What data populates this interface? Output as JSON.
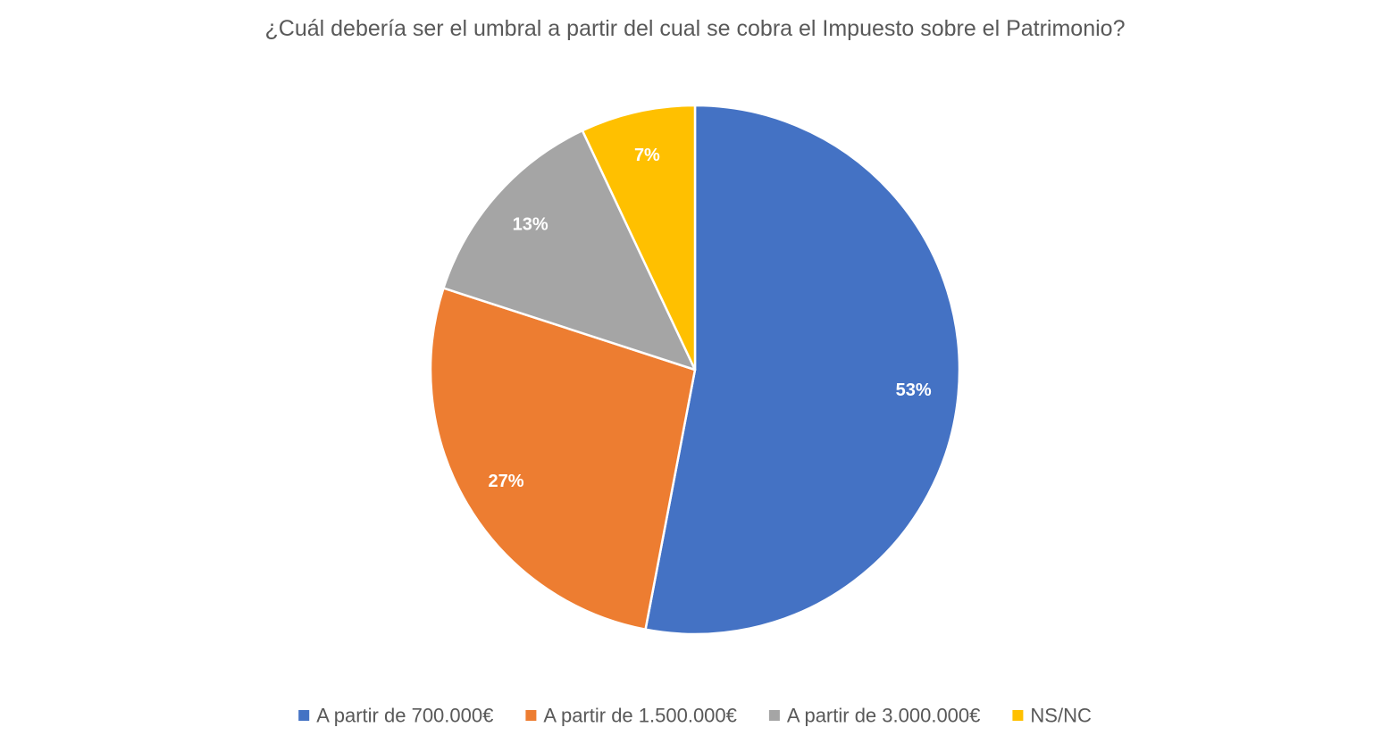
{
  "chart_data": {
    "type": "pie",
    "title": "¿Cuál debería ser el umbral a partir del cual se cobra el Impuesto sobre el Patrimonio?",
    "categories": [
      "A partir de 700.000€",
      "A partir de 1.500.000€",
      "A partir de 3.000.000€",
      "NS/NC"
    ],
    "values": [
      53,
      27,
      13,
      7
    ],
    "data_labels": [
      "53%",
      "27%",
      "13%",
      "7%"
    ],
    "colors": [
      "#4472C4",
      "#ED7D31",
      "#A5A5A5",
      "#FFC000"
    ],
    "start_angle": "12 o'clock",
    "direction": "clockwise",
    "legend_position": "bottom"
  }
}
